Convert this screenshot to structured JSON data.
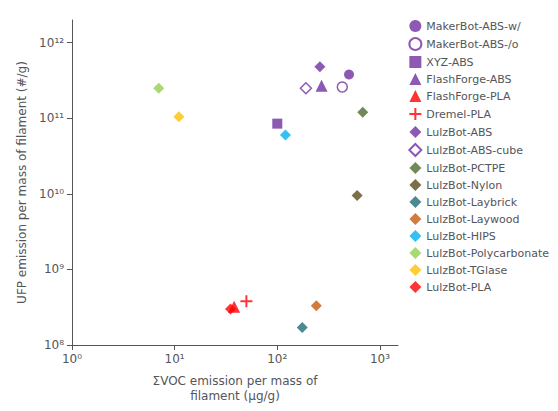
{
  "chart_data": {
    "type": "scatter",
    "xlabel": "ΣVOC emission per mass of\nfilament (μg/g)",
    "ylabel": "UFP emission per mass of filament (#/g)",
    "log": true,
    "grid": false,
    "legend": "right",
    "xlim": [
      1,
      1500
    ],
    "ylim": [
      100000000.0,
      2000000000000.0
    ],
    "xticks": [
      {
        "value": 1,
        "label": "10⁰"
      },
      {
        "value": 10,
        "label": "10¹"
      },
      {
        "value": 100,
        "label": "10²"
      },
      {
        "value": 1000,
        "label": "10³"
      }
    ],
    "yticks": [
      {
        "value": 100000000.0,
        "label": "10⁸"
      },
      {
        "value": 1000000000.0,
        "label": "10⁹"
      },
      {
        "value": 10000000000.0,
        "label": "10¹⁰"
      },
      {
        "value": 100000000000.0,
        "label": "10¹¹"
      },
      {
        "value": 1000000000000.0,
        "label": "10¹²"
      }
    ],
    "series": [
      {
        "name": "MakerBot-ABS-w/",
        "color": "#7030A0",
        "marker": "circle",
        "x": [
          500
        ],
        "values": [
          380000000000.0
        ]
      },
      {
        "name": "MakerBot-ABS-/o",
        "color": "#7030A0",
        "marker": "open_circle",
        "x": [
          430
        ],
        "values": [
          260000000000.0
        ]
      },
      {
        "name": "XYZ-ABS",
        "color": "#7030A0",
        "marker": "square",
        "x": [
          100
        ],
        "values": [
          85000000000.0
        ]
      },
      {
        "name": "FlashForge-ABS",
        "color": "#7030A0",
        "marker": "triangle",
        "x": [
          270
        ],
        "values": [
          270000000000.0
        ]
      },
      {
        "name": "FlashForge-PLA",
        "color": "#FF0000",
        "marker": "triangle",
        "x": [
          38
        ],
        "values": [
          320000000.0
        ]
      },
      {
        "name": "Dremel-PLA",
        "color": "#FF0000",
        "marker": "plus",
        "x": [
          50
        ],
        "values": [
          380000000.0
        ]
      },
      {
        "name": "LulzBot-ABS",
        "color": "#7030A0",
        "marker": "diamond",
        "x": [
          260
        ],
        "values": [
          480000000000.0
        ]
      },
      {
        "name": "LulzBot-ABS-cube",
        "color": "#7030A0",
        "marker": "open_diamond",
        "x": [
          190
        ],
        "values": [
          250000000000.0
        ]
      },
      {
        "name": "LulzBot-PCTPE",
        "color": "#4E6B30",
        "marker": "diamond",
        "x": [
          680
        ],
        "values": [
          120000000000.0
        ]
      },
      {
        "name": "LulzBot-Nylon",
        "color": "#5A4A1A",
        "marker": "diamond",
        "x": [
          600
        ],
        "values": [
          9500000000.0
        ]
      },
      {
        "name": "LulzBot-Laybrick",
        "color": "#1F6B75",
        "marker": "diamond",
        "x": [
          175
        ],
        "values": [
          170000000.0
        ]
      },
      {
        "name": "LulzBot-Laywood",
        "color": "#C55A11",
        "marker": "diamond",
        "x": [
          240
        ],
        "values": [
          330000000.0
        ]
      },
      {
        "name": "LulzBot-HIPS",
        "color": "#00B0F0",
        "marker": "diamond",
        "x": [
          120
        ],
        "values": [
          60000000000.0
        ]
      },
      {
        "name": "LulzBot-Polycarbonate",
        "color": "#92D050",
        "marker": "diamond",
        "x": [
          7
        ],
        "values": [
          250000000000.0
        ]
      },
      {
        "name": "LulzBot-TGlase",
        "color": "#FFC000",
        "marker": "diamond",
        "x": [
          11
        ],
        "values": [
          105000000000.0
        ]
      },
      {
        "name": "LulzBot-PLA",
        "color": "#FF0000",
        "marker": "diamond",
        "x": [
          35
        ],
        "values": [
          300000000.0
        ]
      }
    ]
  }
}
